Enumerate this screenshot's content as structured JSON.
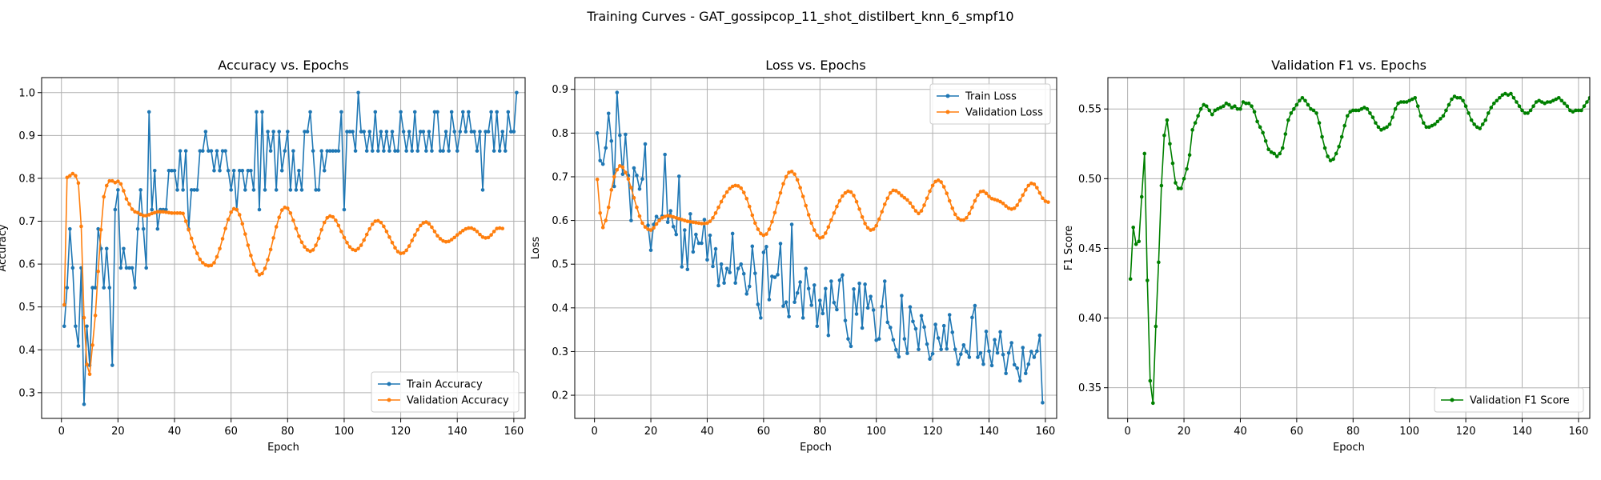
{
  "suptitle": "Training Curves - GAT_gossipcop_11_shot_distilbert_knn_6_smpf10",
  "colors": {
    "blue": "#1f77b4",
    "orange": "#ff7f0e",
    "green": "#008000",
    "grid": "#b0b0b0"
  },
  "chart_data": [
    {
      "type": "line",
      "title": "Accuracy vs. Epochs",
      "xlabel": "Epoch",
      "ylabel": "Accuracy",
      "xlim": [
        -7,
        164
      ],
      "ylim": [
        0.24,
        1.035
      ],
      "xticks": [
        0,
        20,
        40,
        60,
        80,
        100,
        120,
        140,
        160
      ],
      "yticks": [
        0.3,
        0.4,
        0.5,
        0.6,
        0.7,
        0.8,
        0.9,
        1.0
      ],
      "grid": true,
      "legend": "lower right",
      "series": [
        {
          "name": "Train Accuracy",
          "color": "#1f77b4",
          "values": [
            0.455,
            0.545,
            0.682,
            0.591,
            0.455,
            0.409,
            0.591,
            0.273,
            0.455,
            0.364,
            0.545,
            0.545,
            0.682,
            0.636,
            0.545,
            0.636,
            0.545,
            0.364,
            0.727,
            0.773,
            0.591,
            0.636,
            0.591,
            0.591,
            0.591,
            0.545,
            0.682,
            0.773,
            0.682,
            0.591,
            0.955,
            0.727,
            0.818,
            0.682,
            0.727,
            0.727,
            0.727,
            0.818,
            0.818,
            0.818,
            0.773,
            0.864,
            0.773,
            0.864,
            0.682,
            0.773,
            0.773,
            0.773,
            0.864,
            0.864,
            0.909,
            0.864,
            0.864,
            0.818,
            0.864,
            0.818,
            0.864,
            0.864,
            0.818,
            0.773,
            0.818,
            0.727,
            0.818,
            0.818,
            0.773,
            0.818,
            0.818,
            0.773,
            0.955,
            0.727,
            0.955,
            0.773,
            0.909,
            0.864,
            0.909,
            0.773,
            0.909,
            0.818,
            0.864,
            0.909,
            0.773,
            0.864,
            0.773,
            0.818,
            0.773,
            0.909,
            0.909,
            0.955,
            0.864,
            0.773,
            0.773,
            0.864,
            0.818,
            0.864,
            0.864,
            0.864,
            0.864,
            0.864,
            0.955,
            0.727,
            0.909,
            0.909,
            0.909,
            0.864,
            1.0,
            0.909,
            0.909,
            0.864,
            0.909,
            0.864,
            0.955,
            0.864,
            0.909,
            0.864,
            0.909,
            0.864,
            0.909,
            0.864,
            0.864,
            0.955,
            0.909,
            0.864,
            0.909,
            0.864,
            0.955,
            0.864,
            0.909,
            0.909,
            0.864,
            0.909,
            0.864,
            0.955,
            0.955,
            0.864,
            0.864,
            0.909,
            0.864,
            0.955,
            0.909,
            0.864,
            0.909,
            0.955,
            0.909,
            0.955,
            0.909,
            0.909,
            0.864,
            0.909,
            0.773,
            0.909,
            0.909,
            0.955,
            0.864,
            0.955,
            0.864,
            0.909,
            0.864,
            0.955,
            0.909,
            0.909,
            1.0
          ]
        },
        {
          "name": "Validation Accuracy",
          "color": "#ff7f0e",
          "values": [
            0.505,
            0.802,
            0.806,
            0.811,
            0.806,
            0.789,
            0.688,
            0.475,
            0.366,
            0.343,
            0.411,
            0.48,
            0.583,
            0.68,
            0.757,
            0.783,
            0.794,
            0.794,
            0.79,
            0.793,
            0.787,
            0.771,
            0.752,
            0.74,
            0.728,
            0.722,
            0.72,
            0.716,
            0.713,
            0.713,
            0.715,
            0.718,
            0.72,
            0.722,
            0.722,
            0.722,
            0.721,
            0.72,
            0.719,
            0.719,
            0.719,
            0.719,
            0.718,
            0.7,
            0.68,
            0.66,
            0.64,
            0.625,
            0.611,
            0.603,
            0.598,
            0.596,
            0.597,
            0.603,
            0.617,
            0.636,
            0.659,
            0.683,
            0.704,
            0.721,
            0.729,
            0.727,
            0.715,
            0.694,
            0.67,
            0.644,
            0.62,
            0.6,
            0.584,
            0.575,
            0.578,
            0.59,
            0.61,
            0.634,
            0.661,
            0.687,
            0.709,
            0.726,
            0.732,
            0.73,
            0.719,
            0.702,
            0.683,
            0.665,
            0.651,
            0.64,
            0.633,
            0.63,
            0.633,
            0.644,
            0.66,
            0.68,
            0.697,
            0.708,
            0.712,
            0.71,
            0.702,
            0.69,
            0.676,
            0.662,
            0.65,
            0.64,
            0.634,
            0.632,
            0.636,
            0.644,
            0.656,
            0.669,
            0.682,
            0.693,
            0.7,
            0.701,
            0.697,
            0.688,
            0.676,
            0.663,
            0.65,
            0.638,
            0.629,
            0.625,
            0.626,
            0.632,
            0.642,
            0.655,
            0.668,
            0.68,
            0.69,
            0.696,
            0.698,
            0.694,
            0.686,
            0.676,
            0.666,
            0.659,
            0.654,
            0.652,
            0.653,
            0.657,
            0.662,
            0.668,
            0.673,
            0.678,
            0.682,
            0.684,
            0.684,
            0.681,
            0.676,
            0.669,
            0.663,
            0.661,
            0.662,
            0.668,
            0.676,
            0.683,
            0.684,
            0.683
          ]
        }
      ]
    },
    {
      "type": "line",
      "title": "Loss vs. Epochs",
      "xlabel": "Epoch",
      "ylabel": "Loss",
      "xlim": [
        -7,
        164
      ],
      "ylim": [
        0.147,
        0.927
      ],
      "xticks": [
        0,
        20,
        40,
        60,
        80,
        100,
        120,
        140,
        160
      ],
      "yticks": [
        0.2,
        0.3,
        0.4,
        0.5,
        0.6,
        0.7,
        0.8,
        0.9
      ],
      "grid": true,
      "legend": "upper right",
      "series": [
        {
          "name": "Train Loss",
          "color": "#1f77b4",
          "values": [
            0.8,
            0.737,
            0.729,
            0.766,
            0.845,
            0.782,
            0.678,
            0.893,
            0.795,
            0.706,
            0.797,
            0.703,
            0.6,
            0.72,
            0.703,
            0.672,
            0.695,
            0.775,
            0.589,
            0.532,
            0.591,
            0.609,
            0.602,
            0.61,
            0.751,
            0.596,
            0.622,
            0.586,
            0.568,
            0.701,
            0.494,
            0.578,
            0.488,
            0.615,
            0.528,
            0.568,
            0.548,
            0.548,
            0.602,
            0.51,
            0.566,
            0.495,
            0.535,
            0.451,
            0.5,
            0.457,
            0.49,
            0.481,
            0.57,
            0.457,
            0.49,
            0.5,
            0.478,
            0.432,
            0.449,
            0.541,
            0.479,
            0.408,
            0.377,
            0.527,
            0.54,
            0.419,
            0.472,
            0.47,
            0.476,
            0.547,
            0.404,
            0.413,
            0.38,
            0.591,
            0.413,
            0.434,
            0.459,
            0.377,
            0.49,
            0.444,
            0.406,
            0.452,
            0.358,
            0.417,
            0.387,
            0.444,
            0.337,
            0.461,
            0.412,
            0.396,
            0.463,
            0.475,
            0.371,
            0.329,
            0.312,
            0.443,
            0.386,
            0.456,
            0.354,
            0.454,
            0.4,
            0.426,
            0.395,
            0.326,
            0.329,
            0.403,
            0.461,
            0.367,
            0.355,
            0.327,
            0.304,
            0.288,
            0.428,
            0.329,
            0.296,
            0.402,
            0.369,
            0.352,
            0.305,
            0.382,
            0.356,
            0.317,
            0.283,
            0.295,
            0.362,
            0.331,
            0.305,
            0.359,
            0.306,
            0.384,
            0.344,
            0.305,
            0.271,
            0.294,
            0.315,
            0.3,
            0.287,
            0.378,
            0.405,
            0.287,
            0.297,
            0.271,
            0.346,
            0.301,
            0.268,
            0.327,
            0.297,
            0.345,
            0.293,
            0.25,
            0.297,
            0.32,
            0.27,
            0.262,
            0.233,
            0.309,
            0.25,
            0.271,
            0.3,
            0.287,
            0.301,
            0.337,
            0.183
          ]
        },
        {
          "name": "Validation Loss",
          "color": "#ff7f0e",
          "values": [
            0.694,
            0.617,
            0.584,
            0.6,
            0.63,
            0.67,
            0.7,
            0.716,
            0.725,
            0.722,
            0.71,
            0.695,
            0.675,
            0.652,
            0.63,
            0.61,
            0.594,
            0.585,
            0.58,
            0.578,
            0.583,
            0.592,
            0.6,
            0.606,
            0.609,
            0.611,
            0.61,
            0.608,
            0.606,
            0.604,
            0.602,
            0.6,
            0.598,
            0.597,
            0.596,
            0.595,
            0.594,
            0.593,
            0.593,
            0.594,
            0.598,
            0.606,
            0.617,
            0.63,
            0.643,
            0.655,
            0.665,
            0.673,
            0.678,
            0.68,
            0.679,
            0.674,
            0.664,
            0.65,
            0.632,
            0.612,
            0.594,
            0.58,
            0.57,
            0.566,
            0.569,
            0.58,
            0.597,
            0.618,
            0.641,
            0.663,
            0.684,
            0.7,
            0.71,
            0.712,
            0.706,
            0.693,
            0.675,
            0.655,
            0.634,
            0.613,
            0.594,
            0.578,
            0.566,
            0.56,
            0.562,
            0.571,
            0.585,
            0.601,
            0.617,
            0.632,
            0.645,
            0.656,
            0.663,
            0.667,
            0.665,
            0.657,
            0.643,
            0.626,
            0.608,
            0.593,
            0.583,
            0.578,
            0.58,
            0.588,
            0.603,
            0.62,
            0.637,
            0.651,
            0.663,
            0.669,
            0.668,
            0.663,
            0.657,
            0.652,
            0.647,
            0.64,
            0.631,
            0.622,
            0.616,
            0.622,
            0.635,
            0.651,
            0.667,
            0.68,
            0.689,
            0.692,
            0.688,
            0.677,
            0.662,
            0.645,
            0.628,
            0.614,
            0.605,
            0.601,
            0.601,
            0.606,
            0.616,
            0.63,
            0.645,
            0.658,
            0.666,
            0.667,
            0.662,
            0.655,
            0.65,
            0.648,
            0.646,
            0.643,
            0.639,
            0.633,
            0.628,
            0.626,
            0.628,
            0.635,
            0.646,
            0.658,
            0.67,
            0.68,
            0.685,
            0.683,
            0.675,
            0.663,
            0.651,
            0.644,
            0.642
          ]
        }
      ]
    },
    {
      "type": "line",
      "title": "Validation F1 vs. Epochs",
      "xlabel": "Epoch",
      "ylabel": "F1 Score",
      "xlim": [
        -7,
        164
      ],
      "ylim": [
        0.328,
        0.5725
      ],
      "xticks": [
        0,
        20,
        40,
        60,
        80,
        100,
        120,
        140,
        160
      ],
      "yticks": [
        0.35,
        0.4,
        0.45,
        0.5,
        0.55
      ],
      "grid": true,
      "legend": "lower right",
      "series": [
        {
          "name": "Validation F1 Score",
          "color": "#008000",
          "values": [
            0.428,
            0.465,
            0.453,
            0.455,
            0.487,
            0.518,
            0.427,
            0.355,
            0.339,
            0.394,
            0.44,
            0.495,
            0.531,
            0.542,
            0.525,
            0.511,
            0.497,
            0.493,
            0.493,
            0.5,
            0.507,
            0.517,
            0.535,
            0.54,
            0.545,
            0.55,
            0.553,
            0.552,
            0.549,
            0.546,
            0.549,
            0.55,
            0.551,
            0.552,
            0.554,
            0.553,
            0.551,
            0.552,
            0.55,
            0.55,
            0.555,
            0.554,
            0.554,
            0.552,
            0.548,
            0.541,
            0.537,
            0.533,
            0.527,
            0.521,
            0.519,
            0.518,
            0.516,
            0.518,
            0.522,
            0.532,
            0.542,
            0.547,
            0.55,
            0.553,
            0.556,
            0.558,
            0.556,
            0.553,
            0.55,
            0.549,
            0.547,
            0.54,
            0.53,
            0.522,
            0.516,
            0.513,
            0.514,
            0.518,
            0.523,
            0.53,
            0.538,
            0.545,
            0.548,
            0.549,
            0.549,
            0.549,
            0.55,
            0.551,
            0.55,
            0.547,
            0.544,
            0.54,
            0.537,
            0.535,
            0.536,
            0.537,
            0.539,
            0.544,
            0.55,
            0.554,
            0.555,
            0.555,
            0.555,
            0.556,
            0.557,
            0.558,
            0.552,
            0.545,
            0.54,
            0.537,
            0.537,
            0.538,
            0.539,
            0.541,
            0.543,
            0.545,
            0.549,
            0.553,
            0.557,
            0.559,
            0.558,
            0.558,
            0.556,
            0.552,
            0.547,
            0.542,
            0.539,
            0.537,
            0.536,
            0.539,
            0.542,
            0.547,
            0.551,
            0.554,
            0.556,
            0.558,
            0.56,
            0.561,
            0.56,
            0.561,
            0.558,
            0.555,
            0.552,
            0.549,
            0.547,
            0.547,
            0.549,
            0.552,
            0.555,
            0.556,
            0.555,
            0.554,
            0.555,
            0.555,
            0.556,
            0.557,
            0.558,
            0.556,
            0.554,
            0.552,
            0.549,
            0.548,
            0.549,
            0.549,
            0.549,
            0.552,
            0.555,
            0.558,
            0.557
          ]
        }
      ]
    }
  ]
}
